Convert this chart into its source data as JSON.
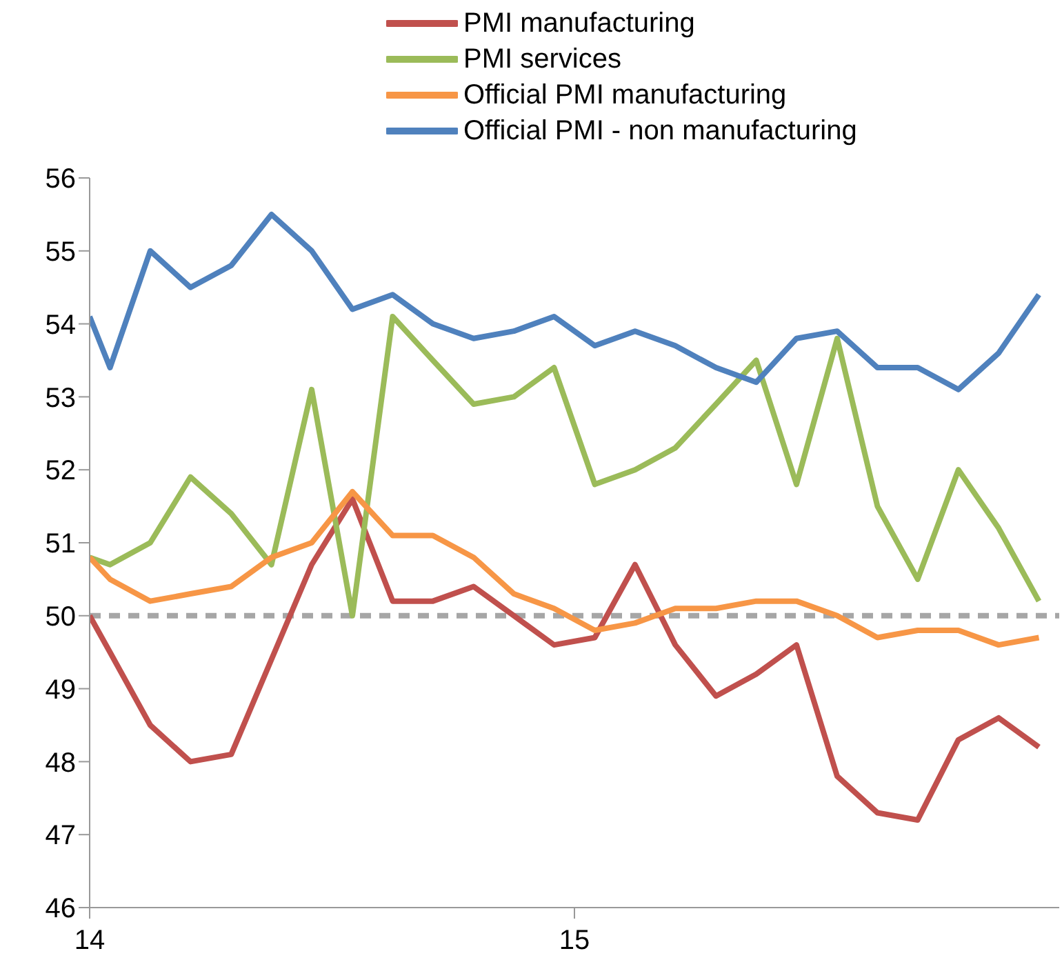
{
  "chart_data": {
    "type": "line",
    "x": [
      14,
      14.042,
      14.125,
      14.208,
      14.292,
      14.375,
      14.458,
      14.542,
      14.625,
      14.708,
      14.792,
      14.875,
      14.958,
      15.042,
      15.125,
      15.208,
      15.292,
      15.375,
      15.458,
      15.542,
      15.625,
      15.708,
      15.792,
      15.875,
      15.958
    ],
    "series": [
      {
        "name": "PMI manufacturing",
        "color": "#c0504d",
        "values": [
          50.0,
          49.5,
          48.5,
          48.0,
          48.1,
          49.4,
          50.7,
          51.6,
          50.2,
          50.2,
          50.4,
          50.0,
          49.6,
          49.7,
          50.7,
          49.6,
          48.9,
          49.2,
          49.6,
          47.8,
          47.3,
          47.2,
          48.3,
          48.6,
          48.2
        ]
      },
      {
        "name": "PMI services",
        "color": "#9bbb59",
        "values": [
          50.8,
          50.7,
          51.0,
          51.9,
          51.4,
          50.7,
          53.1,
          50.0,
          54.1,
          53.5,
          52.9,
          53.0,
          53.4,
          51.8,
          52.0,
          52.3,
          52.9,
          53.5,
          51.8,
          53.8,
          51.5,
          50.5,
          52.0,
          51.2,
          50.2
        ]
      },
      {
        "name": "Official PMI manufacturing",
        "color": "#f79646",
        "values": [
          50.8,
          50.5,
          50.2,
          50.3,
          50.4,
          50.8,
          51.0,
          51.7,
          51.1,
          51.1,
          50.8,
          50.3,
          50.1,
          49.8,
          49.9,
          50.1,
          50.1,
          50.2,
          50.2,
          50.0,
          49.7,
          49.8,
          49.8,
          49.6,
          49.7
        ]
      },
      {
        "name": "Official PMI - non manufacturing",
        "color": "#4f81bd",
        "values": [
          54.1,
          53.4,
          55.0,
          54.5,
          54.8,
          55.5,
          55.0,
          54.2,
          54.4,
          54.0,
          53.8,
          53.9,
          54.1,
          53.7,
          53.9,
          53.7,
          53.4,
          53.2,
          53.8,
          53.9,
          53.4,
          53.4,
          53.1,
          53.6,
          54.4
        ]
      }
    ],
    "xlim": [
      14,
      16
    ],
    "xticks": [
      14,
      15
    ],
    "ylim": [
      46,
      56
    ],
    "yticks": [
      46,
      47,
      48,
      49,
      50,
      51,
      52,
      53,
      54,
      55,
      56
    ],
    "ref_lines": [
      {
        "axis": "y",
        "value": 50,
        "color": "#a6a6a6",
        "line_style": "dashed"
      }
    ],
    "legend": "top",
    "grid": false,
    "marker": "none",
    "line_style": "solid"
  }
}
